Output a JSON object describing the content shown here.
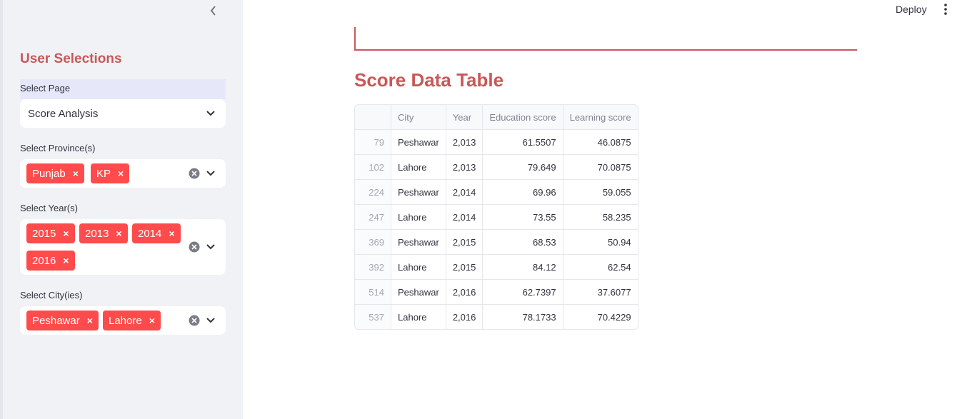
{
  "header": {
    "deploy_label": "Deploy"
  },
  "sidebar": {
    "title": "User Selections",
    "page_select": {
      "label": "Select Page",
      "value": "Score Analysis"
    },
    "province_select": {
      "label": "Select Province(s)",
      "tags": [
        "Punjab",
        "KP"
      ]
    },
    "year_select": {
      "label": "Select Year(s)",
      "tags": [
        "2015",
        "2013",
        "2014",
        "2016"
      ]
    },
    "city_select": {
      "label": "Select City(ies)",
      "tags": [
        "Peshawar",
        "Lahore"
      ]
    }
  },
  "main": {
    "title": "Score Data Table",
    "table": {
      "columns": [
        "",
        "City",
        "Year",
        "Education score",
        "Learning score"
      ],
      "rows": [
        [
          "79",
          "Peshawar",
          "2,013",
          "61.5507",
          "46.0875"
        ],
        [
          "102",
          "Lahore",
          "2,013",
          "79.649",
          "70.0875"
        ],
        [
          "224",
          "Peshawar",
          "2,014",
          "69.96",
          "59.055"
        ],
        [
          "247",
          "Lahore",
          "2,014",
          "73.55",
          "58.235"
        ],
        [
          "369",
          "Peshawar",
          "2,015",
          "68.53",
          "50.94"
        ],
        [
          "392",
          "Lahore",
          "2,015",
          "84.12",
          "62.54"
        ],
        [
          "514",
          "Peshawar",
          "2,016",
          "62.7397",
          "37.6077"
        ],
        [
          "537",
          "Lahore",
          "2,016",
          "78.1733",
          "70.4229"
        ]
      ]
    }
  },
  "colors": {
    "accent": "#ff4b4b",
    "heading": "#c95858",
    "sidebar_bg": "#f0f2f6"
  }
}
